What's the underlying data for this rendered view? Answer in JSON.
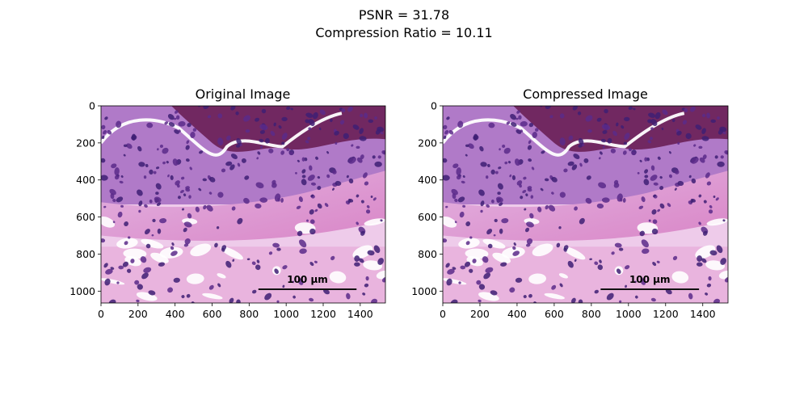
{
  "figure": {
    "suptitle_lines": [
      "PSNR = 31.78",
      "Compression Ratio = 10.11"
    ]
  },
  "chart_data": [
    {
      "type": "image",
      "title": "Original Image",
      "xlim": [
        0,
        1536
      ],
      "ylim": [
        1064,
        0
      ],
      "xticks": [
        0,
        200,
        400,
        600,
        800,
        1000,
        1200,
        1400
      ],
      "yticks": [
        0,
        200,
        400,
        600,
        800,
        1000
      ],
      "annotation": "100 µm"
    },
    {
      "type": "image",
      "title": "Compressed Image",
      "xlim": [
        0,
        1536
      ],
      "ylim": [
        1064,
        0
      ],
      "xticks": [
        0,
        200,
        400,
        600,
        800,
        1000,
        1200,
        1400
      ],
      "yticks": [
        0,
        200,
        400,
        600,
        800,
        1000
      ],
      "annotation": "100 µm"
    }
  ],
  "colors": {
    "tissue_pink": "#e6a6d6",
    "nuclei_purple": "#5a2a8a",
    "dense_region": "#6a1f55",
    "background": "#ffffff"
  }
}
